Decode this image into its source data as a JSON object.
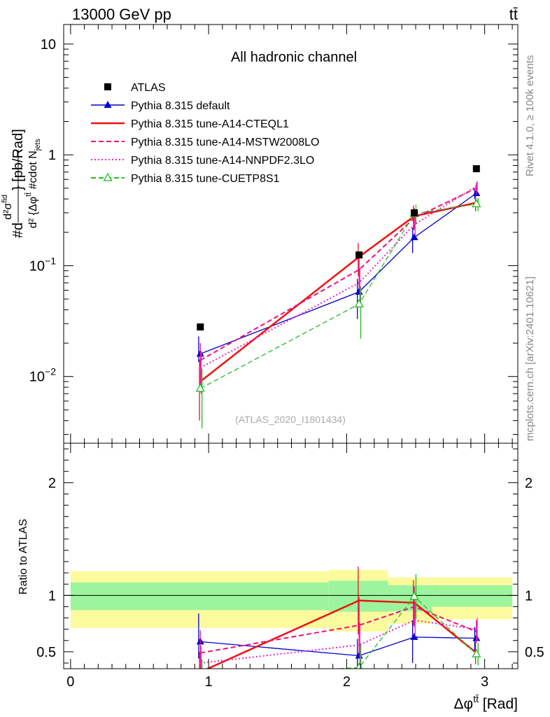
{
  "header": {
    "left": "13000 GeV pp",
    "right": "tt̄"
  },
  "side_labels": {
    "rivet": "Rivet 4.1.0, ≥ 100k events",
    "mcplots": "mcplots.cern.ch [arXiv:2401.10621]"
  },
  "chart_data": [
    {
      "type": "line",
      "panel": "main",
      "title": "All hadronic channel",
      "analysis_id": "(ATLAS_2020_I1801434)",
      "ylabel_parts": {
        "num_prefix": "#d",
        "num_sigma": "d²σ",
        "num_sup": "fid",
        "suffix": "} [pb/Rad]",
        "den": "d² {Δφ",
        "den_sup": "tt̄",
        "den_mid": " #cdot N",
        "den_sub": "jets"
      },
      "xlabel": "Δφ",
      "xlabel_sup": "tt̄",
      "xlabel_unit": " [Rad]",
      "xlim": [
        -0.05,
        3.24
      ],
      "ylim": [
        0.0025,
        15
      ],
      "yscale": "log",
      "ytick_values": [
        0.01,
        0.1,
        1,
        10
      ],
      "ytick_labels": [
        {
          "base": "10",
          "exp": "−2"
        },
        {
          "base": "10",
          "exp": "−1"
        },
        {
          "base": "1",
          "exp": ""
        },
        {
          "base": "10",
          "exp": ""
        }
      ],
      "xtick_values": [
        0,
        1,
        2,
        3
      ],
      "xtick_labels": [
        "0",
        "1",
        "2",
        "3"
      ],
      "legend_position": "top-left",
      "reference": {
        "name": "ATLAS",
        "x": [
          0.94,
          2.09,
          2.49,
          2.94
        ],
        "y": [
          0.028,
          0.125,
          0.3,
          0.75
        ],
        "color": "#000000"
      },
      "series": [
        {
          "name": "Pythia 8.315 default",
          "color": "#0000cc",
          "style": "solid",
          "marker": "triangle",
          "x": [
            0.94,
            2.09,
            2.49,
            2.94
          ],
          "y": [
            0.016,
            0.058,
            0.18,
            0.45
          ],
          "yerr_low": [
            0.0025,
            0.025,
            0.05,
            0.05
          ],
          "yerr_high": [
            0.007,
            0.018,
            0.04,
            0.05
          ]
        },
        {
          "name": "Pythia 8.315 tune-A14-CTEQL1",
          "color": "#ee1111",
          "style": "solid",
          "marker": "none",
          "x": [
            0.94,
            2.09,
            2.49,
            2.94
          ],
          "y": [
            0.009,
            0.12,
            0.28,
            0.37
          ],
          "yerr_low": [
            0.005,
            0.04,
            0.07,
            0.06
          ],
          "yerr_high": [
            0.005,
            0.04,
            0.07,
            0.06
          ]
        },
        {
          "name": "Pythia 8.315 tune-A14-MSTW2008LO",
          "color": "#ee1177",
          "style": "dashed",
          "marker": "none",
          "x": [
            0.94,
            2.09,
            2.49,
            2.94
          ],
          "y": [
            0.014,
            0.092,
            0.27,
            0.5
          ],
          "yerr_low": [
            0.006,
            0.03,
            0.06,
            0.06
          ],
          "yerr_high": [
            0.006,
            0.03,
            0.06,
            0.06
          ]
        },
        {
          "name": "Pythia 8.315 tune-A14-NNPDF2.3LO",
          "color": "#ee22cc",
          "style": "dotted",
          "marker": "none",
          "x": [
            0.94,
            2.09,
            2.49,
            2.94
          ],
          "y": [
            0.012,
            0.07,
            0.235,
            0.52
          ],
          "yerr_low": [
            0.005,
            0.025,
            0.05,
            0.06
          ],
          "yerr_high": [
            0.005,
            0.025,
            0.05,
            0.06
          ]
        },
        {
          "name": "Pythia 8.315 tune-CUETP8S1",
          "color": "#22bb22",
          "style": "dashed",
          "marker": "open-triangle",
          "x": [
            0.94,
            2.09,
            2.49,
            2.94
          ],
          "y": [
            0.0078,
            0.045,
            0.295,
            0.36
          ],
          "yerr_low": [
            0.0044,
            0.023,
            0.06,
            0.05
          ],
          "yerr_high": [
            0.004,
            0.02,
            0.06,
            0.05
          ]
        }
      ]
    },
    {
      "type": "line",
      "panel": "ratio",
      "ylabel": "Ratio to ATLAS",
      "xlim": [
        -0.05,
        3.24
      ],
      "ylim": [
        0.35,
        2.35
      ],
      "ytick_values": [
        0.5,
        1,
        2
      ],
      "ytick_labels": [
        "0.5",
        "1",
        "2"
      ],
      "reference_line": 1,
      "bands": [
        {
          "x0": 0,
          "x1": 1.87,
          "inner": [
            0.87,
            1.115
          ],
          "outer": [
            0.71,
            1.215
          ]
        },
        {
          "x0": 1.87,
          "x1": 2.3,
          "inner": [
            0.855,
            1.13
          ],
          "outer": [
            0.68,
            1.225
          ]
        },
        {
          "x0": 2.3,
          "x1": 2.62,
          "inner": [
            0.86,
            1.09
          ],
          "outer": [
            0.75,
            1.16
          ]
        },
        {
          "x0": 2.62,
          "x1": 3.2,
          "inner": [
            0.9,
            1.09
          ],
          "outer": [
            0.79,
            1.16
          ]
        }
      ],
      "band_colors": {
        "inner": "#9cf59c",
        "outer": "#fbfb9e"
      },
      "series": [
        {
          "name": "Pythia 8.315 default",
          "color": "#0000cc",
          "style": "solid",
          "marker": "triangle",
          "x": [
            0.94,
            2.09,
            2.49,
            2.94
          ],
          "y": [
            0.59,
            0.465,
            0.63,
            0.62
          ],
          "yerr_low": [
            0.15,
            0.2,
            0.23,
            0.12
          ],
          "yerr_high": [
            0.25,
            0.15,
            0.15,
            0.1
          ]
        },
        {
          "name": "Pythia 8.315 tune-A14-CTEQL1",
          "color": "#ee1111",
          "style": "solid",
          "marker": "none",
          "x": [
            0.94,
            2.09,
            2.49,
            2.94
          ],
          "y": [
            0.32,
            0.955,
            0.935,
            0.49
          ],
          "yerr_low": [
            0.18,
            0.3,
            0.2,
            0.1
          ],
          "yerr_high": [
            0.18,
            0.3,
            0.2,
            0.1
          ]
        },
        {
          "name": "Pythia 8.315 tune-A14-MSTW2008LO",
          "color": "#ee1177",
          "style": "dashed",
          "marker": "none",
          "x": [
            0.94,
            2.09,
            2.49,
            2.94
          ],
          "y": [
            0.49,
            0.735,
            0.9,
            0.68
          ],
          "yerr_low": [
            0.2,
            0.25,
            0.18,
            0.1
          ],
          "yerr_high": [
            0.2,
            0.25,
            0.18,
            0.1
          ]
        },
        {
          "name": "Pythia 8.315 tune-A14-NNPDF2.3LO",
          "color": "#ee22cc",
          "style": "dotted",
          "marker": "none",
          "x": [
            0.94,
            2.09,
            2.49,
            2.94
          ],
          "y": [
            0.4,
            0.56,
            0.78,
            0.7
          ],
          "yerr_low": [
            0.15,
            0.2,
            0.15,
            0.1
          ],
          "yerr_high": [
            0.15,
            0.2,
            0.15,
            0.1
          ]
        },
        {
          "name": "Pythia 8.315 tune-CUETP8S1",
          "color": "#22bb22",
          "style": "dashed",
          "marker": "open-triangle",
          "x": [
            0.94,
            2.09,
            2.49,
            2.94
          ],
          "y": [
            0.28,
            0.36,
            0.99,
            0.48
          ],
          "yerr_low": [
            0.15,
            0.2,
            0.2,
            0.1
          ],
          "yerr_high": [
            0.15,
            0.2,
            0.2,
            0.1
          ]
        }
      ]
    }
  ]
}
